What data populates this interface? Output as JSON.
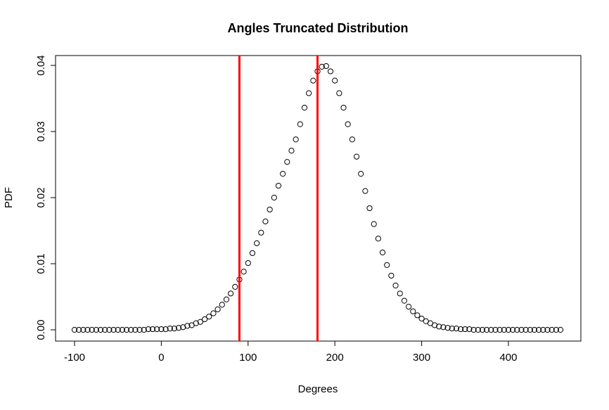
{
  "chart_data": {
    "type": "scatter",
    "title": "Angles Truncated Distribution",
    "xlabel": "Degrees",
    "ylabel": "PDF",
    "xlim": [
      -100,
      460
    ],
    "ylim": [
      0,
      0.04
    ],
    "x_ticks": [
      -100,
      0,
      100,
      200,
      300,
      400
    ],
    "x_tick_labels": [
      "-100",
      "0",
      "100",
      "200",
      "300",
      "400"
    ],
    "y_ticks": [
      0,
      0.01,
      0.02,
      0.03,
      0.04
    ],
    "y_tick_labels": [
      "0.00",
      "0.01",
      "0.02",
      "0.03",
      "0.04"
    ],
    "grid": false,
    "legend": "none",
    "series": [
      {
        "marker": "open-circle",
        "color": "#000000",
        "x": [
          -100,
          -95,
          -90,
          -85,
          -80,
          -75,
          -70,
          -65,
          -60,
          -55,
          -50,
          -45,
          -40,
          -35,
          -30,
          -25,
          -20,
          -15,
          -10,
          -5,
          0,
          5,
          10,
          15,
          20,
          25,
          30,
          35,
          40,
          45,
          50,
          55,
          60,
          65,
          70,
          75,
          80,
          85,
          90,
          95,
          100,
          105,
          110,
          115,
          120,
          125,
          130,
          135,
          140,
          145,
          150,
          155,
          160,
          165,
          170,
          175,
          180,
          185,
          190,
          195,
          200,
          205,
          210,
          215,
          220,
          225,
          230,
          235,
          240,
          245,
          250,
          255,
          260,
          265,
          270,
          275,
          280,
          285,
          290,
          295,
          300,
          305,
          310,
          315,
          320,
          325,
          330,
          335,
          340,
          345,
          350,
          355,
          360,
          365,
          370,
          375,
          380,
          385,
          390,
          395,
          400,
          405,
          410,
          415,
          420,
          425,
          430,
          435,
          440,
          445,
          450,
          455,
          460
        ],
        "y": [
          0,
          0,
          0,
          0,
          0,
          0,
          0,
          0,
          0,
          0,
          0,
          0,
          0,
          0,
          0,
          0,
          0,
          0.0001,
          0.0001,
          0.0001,
          0.0001,
          0.0001,
          0.0002,
          0.0002,
          0.0003,
          0.0004,
          0.0006,
          0.0007,
          0.001,
          0.0012,
          0.0016,
          0.002,
          0.0025,
          0.0031,
          0.0038,
          0.0046,
          0.0055,
          0.0065,
          0.0076,
          0.0088,
          0.0101,
          0.0116,
          0.0131,
          0.0147,
          0.0164,
          0.0182,
          0.02,
          0.0218,
          0.0236,
          0.0254,
          0.0271,
          0.0288,
          0.0311,
          0.0336,
          0.0358,
          0.0377,
          0.0391,
          0.0398,
          0.0399,
          0.0391,
          0.0377,
          0.0358,
          0.0336,
          0.0311,
          0.0288,
          0.0262,
          0.0236,
          0.021,
          0.0184,
          0.016,
          0.0138,
          0.0117,
          0.0098,
          0.0082,
          0.0067,
          0.0055,
          0.0044,
          0.0035,
          0.0028,
          0.0022,
          0.0017,
          0.0013,
          0.001,
          0.0007,
          0.0005,
          0.0004,
          0.0003,
          0.0002,
          0.0002,
          0.0001,
          0.0001,
          0.0001,
          0,
          0,
          0,
          0,
          0,
          0,
          0,
          0,
          0,
          0,
          0,
          0,
          0,
          0,
          0,
          0,
          0,
          0,
          0,
          0,
          0
        ]
      }
    ],
    "vlines": [
      {
        "x": 90,
        "color": "#ff0000"
      },
      {
        "x": 180,
        "color": "#ff0000"
      }
    ]
  }
}
